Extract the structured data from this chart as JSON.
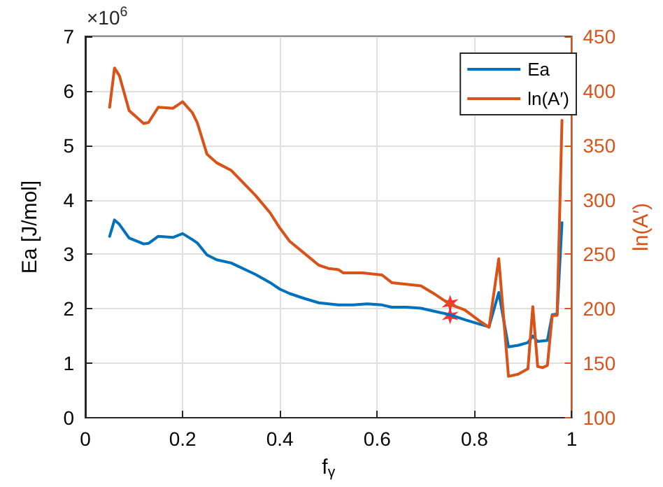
{
  "chart_data": {
    "type": "line",
    "xlabel": "f$_{γ}$",
    "ylabel": "Ea [J/mol]",
    "y2label": "ln(A′)",
    "annotations": [
      "×10$^{6}$"
    ],
    "xlim": [
      0,
      1
    ],
    "xticks": [
      0,
      0.2,
      0.4,
      0.6,
      0.8,
      1
    ],
    "ylim": [
      0,
      7
    ],
    "yticks": [
      0,
      1,
      2,
      3,
      4,
      5,
      6,
      7
    ],
    "y2lim": [
      100,
      450
    ],
    "y2ticks": [
      100,
      150,
      200,
      250,
      300,
      350,
      400,
      450
    ],
    "grid": true,
    "legend": "top right",
    "marker": "none",
    "line_style": "solid",
    "series": [
      {
        "name": "Ea",
        "color": "#0072bd",
        "x": [
          0.05,
          0.06,
          0.07,
          0.09,
          0.12,
          0.13,
          0.15,
          0.18,
          0.2,
          0.22,
          0.23,
          0.25,
          0.27,
          0.3,
          0.35,
          0.38,
          0.4,
          0.42,
          0.45,
          0.48,
          0.5,
          0.52,
          0.55,
          0.58,
          0.61,
          0.63,
          0.66,
          0.69,
          0.72,
          0.75,
          0.78,
          0.81,
          0.83,
          0.85,
          0.87,
          0.89,
          0.91,
          0.92,
          0.93,
          0.95,
          0.96,
          0.97,
          0.98
        ],
        "values": [
          3.33,
          3.63,
          3.55,
          3.3,
          3.19,
          3.2,
          3.33,
          3.31,
          3.38,
          3.27,
          3.21,
          2.99,
          2.9,
          2.84,
          2.63,
          2.48,
          2.36,
          2.28,
          2.19,
          2.11,
          2.09,
          2.07,
          2.07,
          2.09,
          2.07,
          2.03,
          2.03,
          2.01,
          1.95,
          1.89,
          1.8,
          1.72,
          1.67,
          2.3,
          1.3,
          1.33,
          1.38,
          1.5,
          1.4,
          1.42,
          1.89,
          1.9,
          3.58
        ]
      },
      {
        "name": "ln(A′)",
        "color": "#d95319",
        "axis": "y2",
        "x": [
          0.05,
          0.06,
          0.07,
          0.09,
          0.12,
          0.13,
          0.15,
          0.18,
          0.2,
          0.22,
          0.23,
          0.25,
          0.27,
          0.3,
          0.35,
          0.38,
          0.4,
          0.42,
          0.45,
          0.48,
          0.5,
          0.52,
          0.53,
          0.57,
          0.61,
          0.63,
          0.69,
          0.72,
          0.75,
          0.78,
          0.81,
          0.83,
          0.85,
          0.87,
          0.89,
          0.91,
          0.92,
          0.93,
          0.94,
          0.95,
          0.96,
          0.97,
          0.98
        ],
        "values": [
          385,
          421,
          414,
          382,
          370,
          371,
          385,
          384,
          390,
          380,
          371,
          342,
          334,
          327,
          304,
          288,
          274,
          262,
          251,
          240,
          237,
          236,
          233,
          233,
          231,
          224,
          221,
          213,
          204,
          199,
          189,
          183,
          246,
          138,
          140,
          145,
          202,
          147,
          146,
          148,
          194,
          194,
          373
        ]
      },
      {
        "type": "scatter",
        "color": "#ff0000",
        "marker": "cross",
        "x": [
          0.75
        ],
        "values": [
          1.87
        ]
      },
      {
        "type": "scatter",
        "color": "#ff0000",
        "marker": "cross",
        "axis": "y2",
        "x": [
          0.75
        ],
        "values": [
          205
        ]
      }
    ]
  }
}
